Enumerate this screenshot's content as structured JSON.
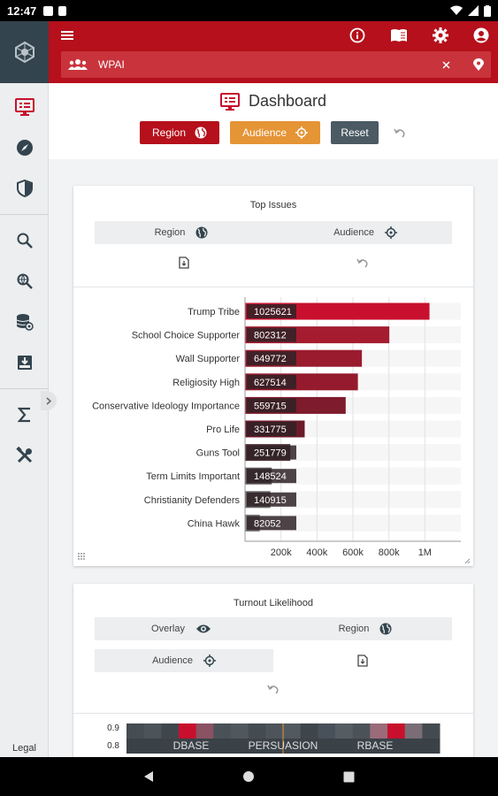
{
  "status_bar": {
    "time": "12:47"
  },
  "rail": {
    "legal": "Legal"
  },
  "header": {
    "search": {
      "label": "WPAI"
    }
  },
  "page": {
    "title": "Dashboard"
  },
  "toolbar": {
    "region_label": "Region",
    "audience_label": "Audience",
    "reset_label": "Reset"
  },
  "top_issues": {
    "title": "Top Issues",
    "region_label": "Region",
    "audience_label": "Audience"
  },
  "turnout": {
    "title": "Turnout Likelihood",
    "overlay_label": "Overlay",
    "region_label": "Region",
    "audience_label": "Audience"
  },
  "chart_data": [
    {
      "type": "bar",
      "orientation": "horizontal",
      "categories": [
        "Trump Tribe",
        "School Choice Supporter",
        "Wall Supporter",
        "Religiosity High",
        "Conservative Ideology Importance",
        "Pro Life",
        "Guns Tool",
        "Term Limits Important",
        "Christianity Defenders",
        "China Hawk"
      ],
      "values": [
        1025621,
        802312,
        649772,
        627514,
        559715,
        331775,
        251779,
        148524,
        140915,
        82052
      ],
      "value_labels": [
        "1025621",
        "802312",
        "649772",
        "627514",
        "559715",
        "331775",
        "251779",
        "148524",
        "140915",
        "82052"
      ],
      "xticks": [
        "200k",
        "400k",
        "600k",
        "800k",
        "1M"
      ],
      "xlim": [
        0,
        1200000
      ],
      "colors": [
        "#c8102e",
        "#a51c30",
        "#9a1b2e",
        "#951a2e",
        "#7e1b2c",
        "#6b1a28",
        "#4f3438",
        "#5a5557",
        "#6a6868",
        "#7a7a7a"
      ],
      "grid": true
    },
    {
      "type": "heatmap",
      "yticks": [
        "0.9",
        "0.8"
      ],
      "xlabels": [
        "DBASE",
        "PERSUASION",
        "RBASE"
      ]
    }
  ],
  "colors": {
    "brand": "#b5101b",
    "audience": "#e59436",
    "reset": "#4b5a63",
    "rail_dark": "#34444e"
  }
}
